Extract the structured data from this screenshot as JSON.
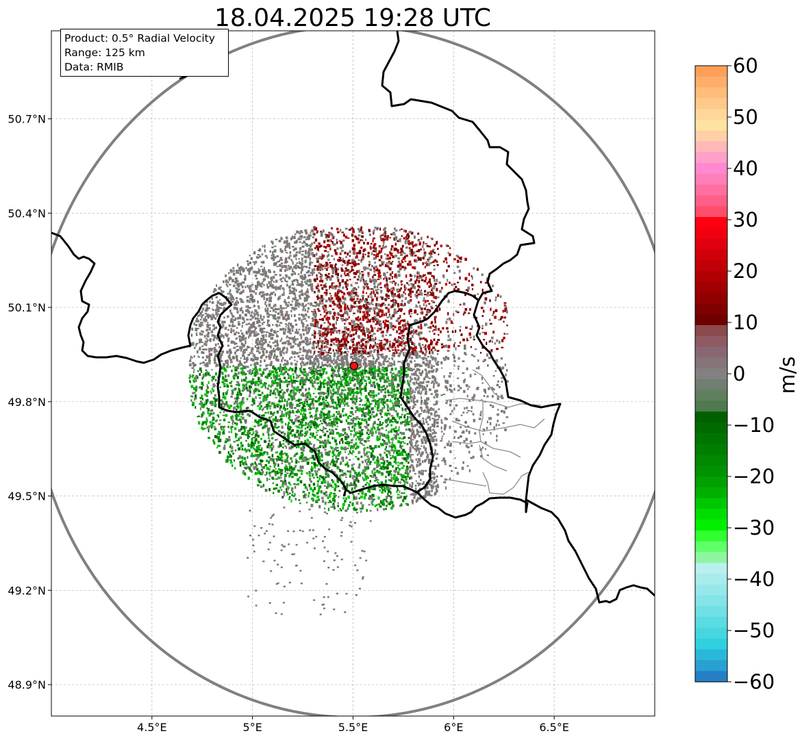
{
  "title": "18.04.2025 19:28 UTC",
  "info_box": {
    "line1": "Product: 0.5° Radial Velocity",
    "line2": "Range: 125 km",
    "line3": "Data: RMIB"
  },
  "map": {
    "lon_range": [
      4.0,
      7.0
    ],
    "lat_range": [
      48.8,
      50.98
    ],
    "x_ticks": [
      {
        "value": 4.5,
        "label": "4.5°E"
      },
      {
        "value": 5.0,
        "label": "5°E"
      },
      {
        "value": 5.5,
        "label": "5.5°E"
      },
      {
        "value": 6.0,
        "label": "6°E"
      },
      {
        "value": 6.5,
        "label": "6.5°E"
      }
    ],
    "y_ticks": [
      {
        "value": 48.9,
        "label": "48.9°N"
      },
      {
        "value": 49.2,
        "label": "49.2°N"
      },
      {
        "value": 49.5,
        "label": "49.5°N"
      },
      {
        "value": 49.8,
        "label": "49.8°N"
      },
      {
        "value": 50.1,
        "label": "50.1°N"
      },
      {
        "value": 50.4,
        "label": "50.4°N"
      },
      {
        "value": 50.7,
        "label": "50.7°N"
      }
    ],
    "grid": true,
    "radar_site": {
      "lon": 5.505,
      "lat": 49.914
    },
    "range_ring_km": 125
  },
  "colorbar": {
    "label": "m/s",
    "min": -60,
    "max": 60,
    "ticks": [
      {
        "value": 60,
        "label": "60"
      },
      {
        "value": 50,
        "label": "50"
      },
      {
        "value": 40,
        "label": "40"
      },
      {
        "value": 30,
        "label": "30"
      },
      {
        "value": 20,
        "label": "20"
      },
      {
        "value": 10,
        "label": "10"
      },
      {
        "value": 0,
        "label": "0"
      },
      {
        "value": -10,
        "label": "−10"
      },
      {
        "value": -20,
        "label": "−20"
      },
      {
        "value": -30,
        "label": "−30"
      },
      {
        "value": -40,
        "label": "−40"
      },
      {
        "value": -50,
        "label": "−50"
      },
      {
        "value": -60,
        "label": "−60"
      }
    ],
    "colors_top_to_bottom": [
      "#ff9f5a",
      "#ffae6a",
      "#ffbc7a",
      "#ffc98a",
      "#ffd79a",
      "#ffe2a0",
      "#ffd0a8",
      "#ffb8b8",
      "#ffa0c8",
      "#ff88d0",
      "#ff7fb8",
      "#ff6fa0",
      "#ff5e88",
      "#ff4e6c",
      "#ff0010",
      "#f00010",
      "#e00010",
      "#d00008",
      "#c00006",
      "#b00004",
      "#a00002",
      "#900000",
      "#800000",
      "#700000",
      "#8a4a4e",
      "#8f5a62",
      "#876872",
      "#857478",
      "#828080",
      "#707f70",
      "#5f7f5f",
      "#4e7a4e",
      "#006000",
      "#006a00",
      "#007400",
      "#007e00",
      "#008800",
      "#009200",
      "#00a000",
      "#00b000",
      "#00c800",
      "#00de00",
      "#00f000",
      "#30ff30",
      "#5fff6a",
      "#8ff5a0",
      "#b8f0f0",
      "#a8ecec",
      "#96e8ea",
      "#84e4e8",
      "#70e0e4",
      "#5adce2",
      "#46d6e0",
      "#30d0df",
      "#2bb8d8",
      "#28a0d0",
      "#247fc4"
    ]
  }
}
